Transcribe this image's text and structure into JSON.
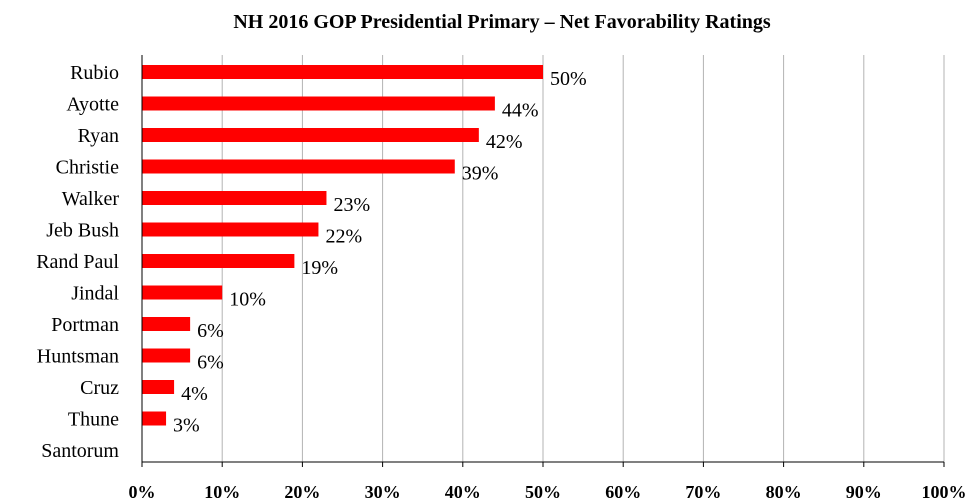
{
  "chart_data": {
    "type": "bar",
    "orientation": "horizontal",
    "title": "NH 2016 GOP Presidential Primary – Net Favorability Ratings",
    "categories": [
      "Rubio",
      "Ayotte",
      "Ryan",
      "Christie",
      "Walker",
      "Jeb Bush",
      "Rand Paul",
      "Jindal",
      "Portman",
      "Huntsman",
      "Cruz",
      "Thune",
      "Santorum"
    ],
    "values": [
      50,
      44,
      42,
      39,
      23,
      22,
      19,
      10,
      6,
      6,
      4,
      3,
      0
    ],
    "data_labels": [
      "50%",
      "44%",
      "42%",
      "39%",
      "23%",
      "22%",
      "19%",
      "10%",
      "6%",
      "6%",
      "4%",
      "3%",
      ""
    ],
    "xlim": [
      0,
      100
    ],
    "x_ticks": [
      "0%",
      "10%",
      "20%",
      "30%",
      "40%",
      "50%",
      "60%",
      "70%",
      "80%",
      "90%",
      "100%"
    ],
    "xlabel": "",
    "ylabel": "",
    "grid": true,
    "legend": "none",
    "bar_color": "#ff0000",
    "grid_color": "#b3b3b3"
  }
}
